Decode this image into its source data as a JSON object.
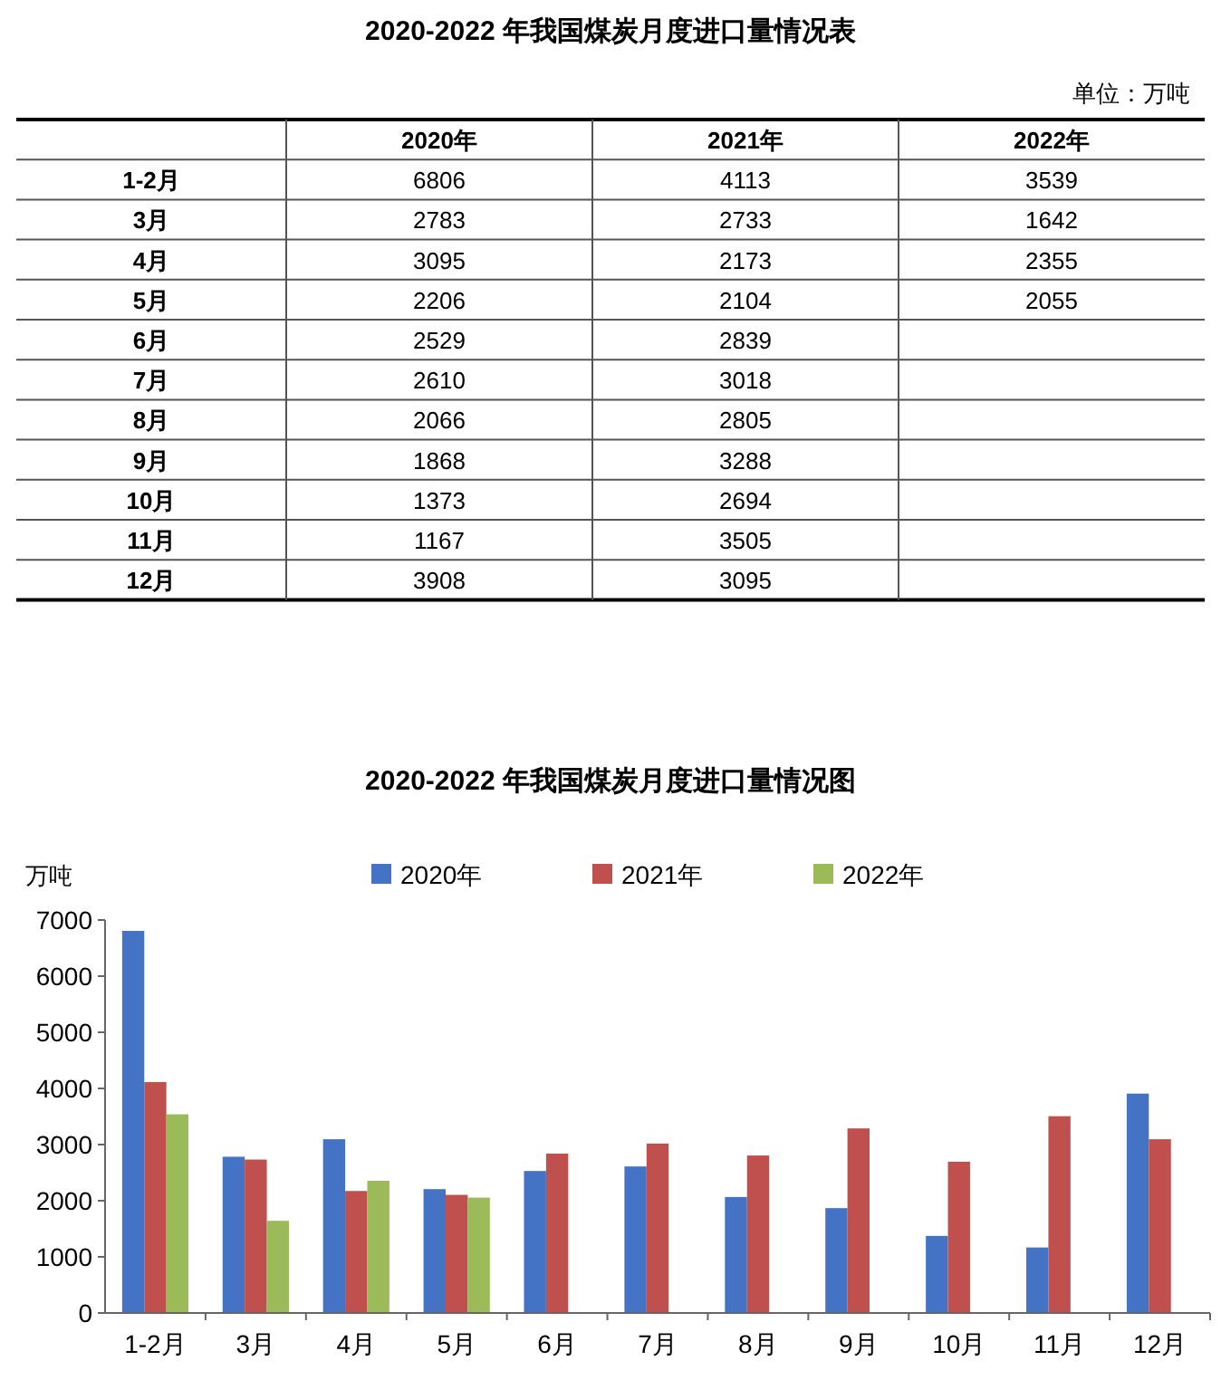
{
  "chart_data": [
    {
      "type": "heatmap",
      "title": "2020-2022 年我国煤炭月度进口量情况表",
      "annotations": [
        "单位：万吨"
      ],
      "categories": [
        "2020年",
        "2021年",
        "2022年"
      ],
      "y_categories": [
        "1-2月",
        "3月",
        "4月",
        "5月",
        "6月",
        "7月",
        "8月",
        "9月",
        "10月",
        "11月",
        "12月"
      ],
      "cells": [
        [
          6806,
          4113,
          3539
        ],
        [
          2783,
          2733,
          1642
        ],
        [
          3095,
          2173,
          2355
        ],
        [
          2206,
          2104,
          2055
        ],
        [
          2529,
          2839,
          null
        ],
        [
          2610,
          3018,
          null
        ],
        [
          2066,
          2805,
          null
        ],
        [
          1868,
          3288,
          null
        ],
        [
          1373,
          2694,
          null
        ],
        [
          1167,
          3505,
          null
        ],
        [
          3908,
          3095,
          null
        ]
      ],
      "data_labels": true
    },
    {
      "type": "bar",
      "title": "2020-2022 年我国煤炭月度进口量情况图",
      "ylabel": "万吨",
      "categories": [
        "1-2月",
        "3月",
        "4月",
        "5月",
        "6月",
        "7月",
        "8月",
        "9月",
        "10月",
        "11月",
        "12月"
      ],
      "series": [
        {
          "name": "2020年",
          "color": "#4472c4",
          "values": [
            6806,
            2783,
            3095,
            2206,
            2529,
            2610,
            2066,
            1868,
            1373,
            1167,
            3908
          ]
        },
        {
          "name": "2021年",
          "color": "#c0504d",
          "values": [
            4113,
            2733,
            2173,
            2104,
            2839,
            3018,
            2805,
            3288,
            2694,
            3505,
            3095
          ]
        },
        {
          "name": "2022年",
          "color": "#9bbb59",
          "values": [
            3539,
            1642,
            2355,
            2055,
            null,
            null,
            null,
            null,
            null,
            null,
            null
          ]
        }
      ],
      "ylim": [
        0,
        7000
      ],
      "yticks": [
        0,
        1000,
        2000,
        3000,
        4000,
        5000,
        6000,
        7000
      ],
      "legend": "top"
    }
  ]
}
